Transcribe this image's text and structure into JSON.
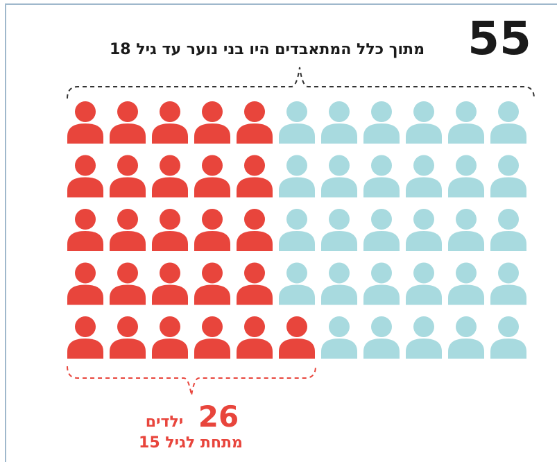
{
  "chart_data": {
    "type": "pictogram",
    "total": {
      "value": 55,
      "label": "55",
      "text": "מתוך כלל המתאבדים היו בני נוער עד גיל 18",
      "color": "#a8dadf"
    },
    "highlight": {
      "value": 26,
      "label": "26",
      "text": "ילדים",
      "subtext": "מתחת לגיל 15",
      "color": "#e8453c"
    },
    "rows": 5
  }
}
